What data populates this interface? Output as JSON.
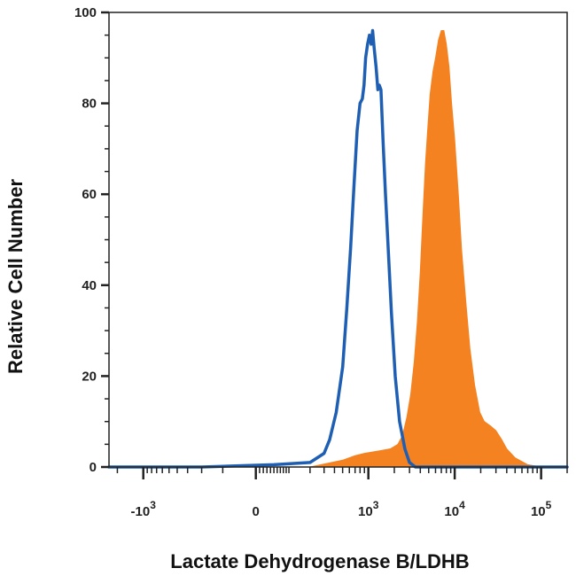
{
  "chart_data": {
    "type": "area",
    "title": "",
    "xlabel": "Lactate Dehydrogenase B/LDHB",
    "ylabel": "Relative Cell Number",
    "x_scale": "biexponential",
    "xlim": [
      -2500,
      200000
    ],
    "ylim": [
      0,
      100
    ],
    "grid": false,
    "legend": "none",
    "y_ticks": [
      "0",
      "20",
      "40",
      "60",
      "80",
      "100"
    ],
    "x_ticks": [
      {
        "value": -1000,
        "base": "-10",
        "exp": "3"
      },
      {
        "value": 0,
        "base": "0",
        "exp": ""
      },
      {
        "value": 1000,
        "base": "10",
        "exp": "3"
      },
      {
        "value": 10000,
        "base": "10",
        "exp": "4"
      },
      {
        "value": 100000,
        "base": "10",
        "exp": "5"
      }
    ],
    "series": [
      {
        "style": "outline",
        "color": "#1f5fb3",
        "points": [
          [
            -2500,
            0
          ],
          [
            -200,
            0
          ],
          [
            50,
            0.5
          ],
          [
            200,
            1
          ],
          [
            300,
            3
          ],
          [
            350,
            6
          ],
          [
            420,
            12
          ],
          [
            500,
            22
          ],
          [
            560,
            35
          ],
          [
            620,
            48
          ],
          [
            680,
            62
          ],
          [
            740,
            74
          ],
          [
            800,
            80
          ],
          [
            850,
            81
          ],
          [
            890,
            84
          ],
          [
            930,
            90
          ],
          [
            980,
            93
          ],
          [
            1030,
            95
          ],
          [
            1080,
            93
          ],
          [
            1120,
            96
          ],
          [
            1170,
            92
          ],
          [
            1230,
            88
          ],
          [
            1290,
            83
          ],
          [
            1340,
            84
          ],
          [
            1400,
            83
          ],
          [
            1480,
            72
          ],
          [
            1580,
            60
          ],
          [
            1700,
            48
          ],
          [
            1850,
            34
          ],
          [
            2050,
            20
          ],
          [
            2300,
            10
          ],
          [
            2650,
            4
          ],
          [
            3000,
            1
          ],
          [
            3500,
            0
          ],
          [
            200000,
            0
          ]
        ]
      },
      {
        "style": "filled",
        "color": "#f58220",
        "points": [
          [
            -2500,
            0
          ],
          [
            200,
            0
          ],
          [
            500,
            1.5
          ],
          [
            700,
            2.5
          ],
          [
            900,
            3
          ],
          [
            1300,
            3.5
          ],
          [
            1800,
            4
          ],
          [
            2200,
            5
          ],
          [
            2500,
            7
          ],
          [
            2800,
            11
          ],
          [
            3100,
            16
          ],
          [
            3400,
            23
          ],
          [
            3700,
            32
          ],
          [
            4000,
            43
          ],
          [
            4300,
            56
          ],
          [
            4600,
            67
          ],
          [
            4900,
            75
          ],
          [
            5200,
            82
          ],
          [
            5600,
            87
          ],
          [
            6000,
            90
          ],
          [
            6500,
            94
          ],
          [
            7000,
            96
          ],
          [
            7500,
            96
          ],
          [
            8000,
            93
          ],
          [
            8600,
            88
          ],
          [
            9200,
            80
          ],
          [
            10000,
            72
          ],
          [
            11000,
            60
          ],
          [
            12000,
            48
          ],
          [
            13500,
            36
          ],
          [
            15000,
            26
          ],
          [
            17000,
            18
          ],
          [
            19500,
            12
          ],
          [
            22000,
            10
          ],
          [
            26000,
            9
          ],
          [
            30000,
            8
          ],
          [
            35000,
            6
          ],
          [
            40000,
            4
          ],
          [
            50000,
            2
          ],
          [
            70000,
            0.5
          ],
          [
            100000,
            0
          ],
          [
            200000,
            0
          ]
        ]
      }
    ]
  }
}
